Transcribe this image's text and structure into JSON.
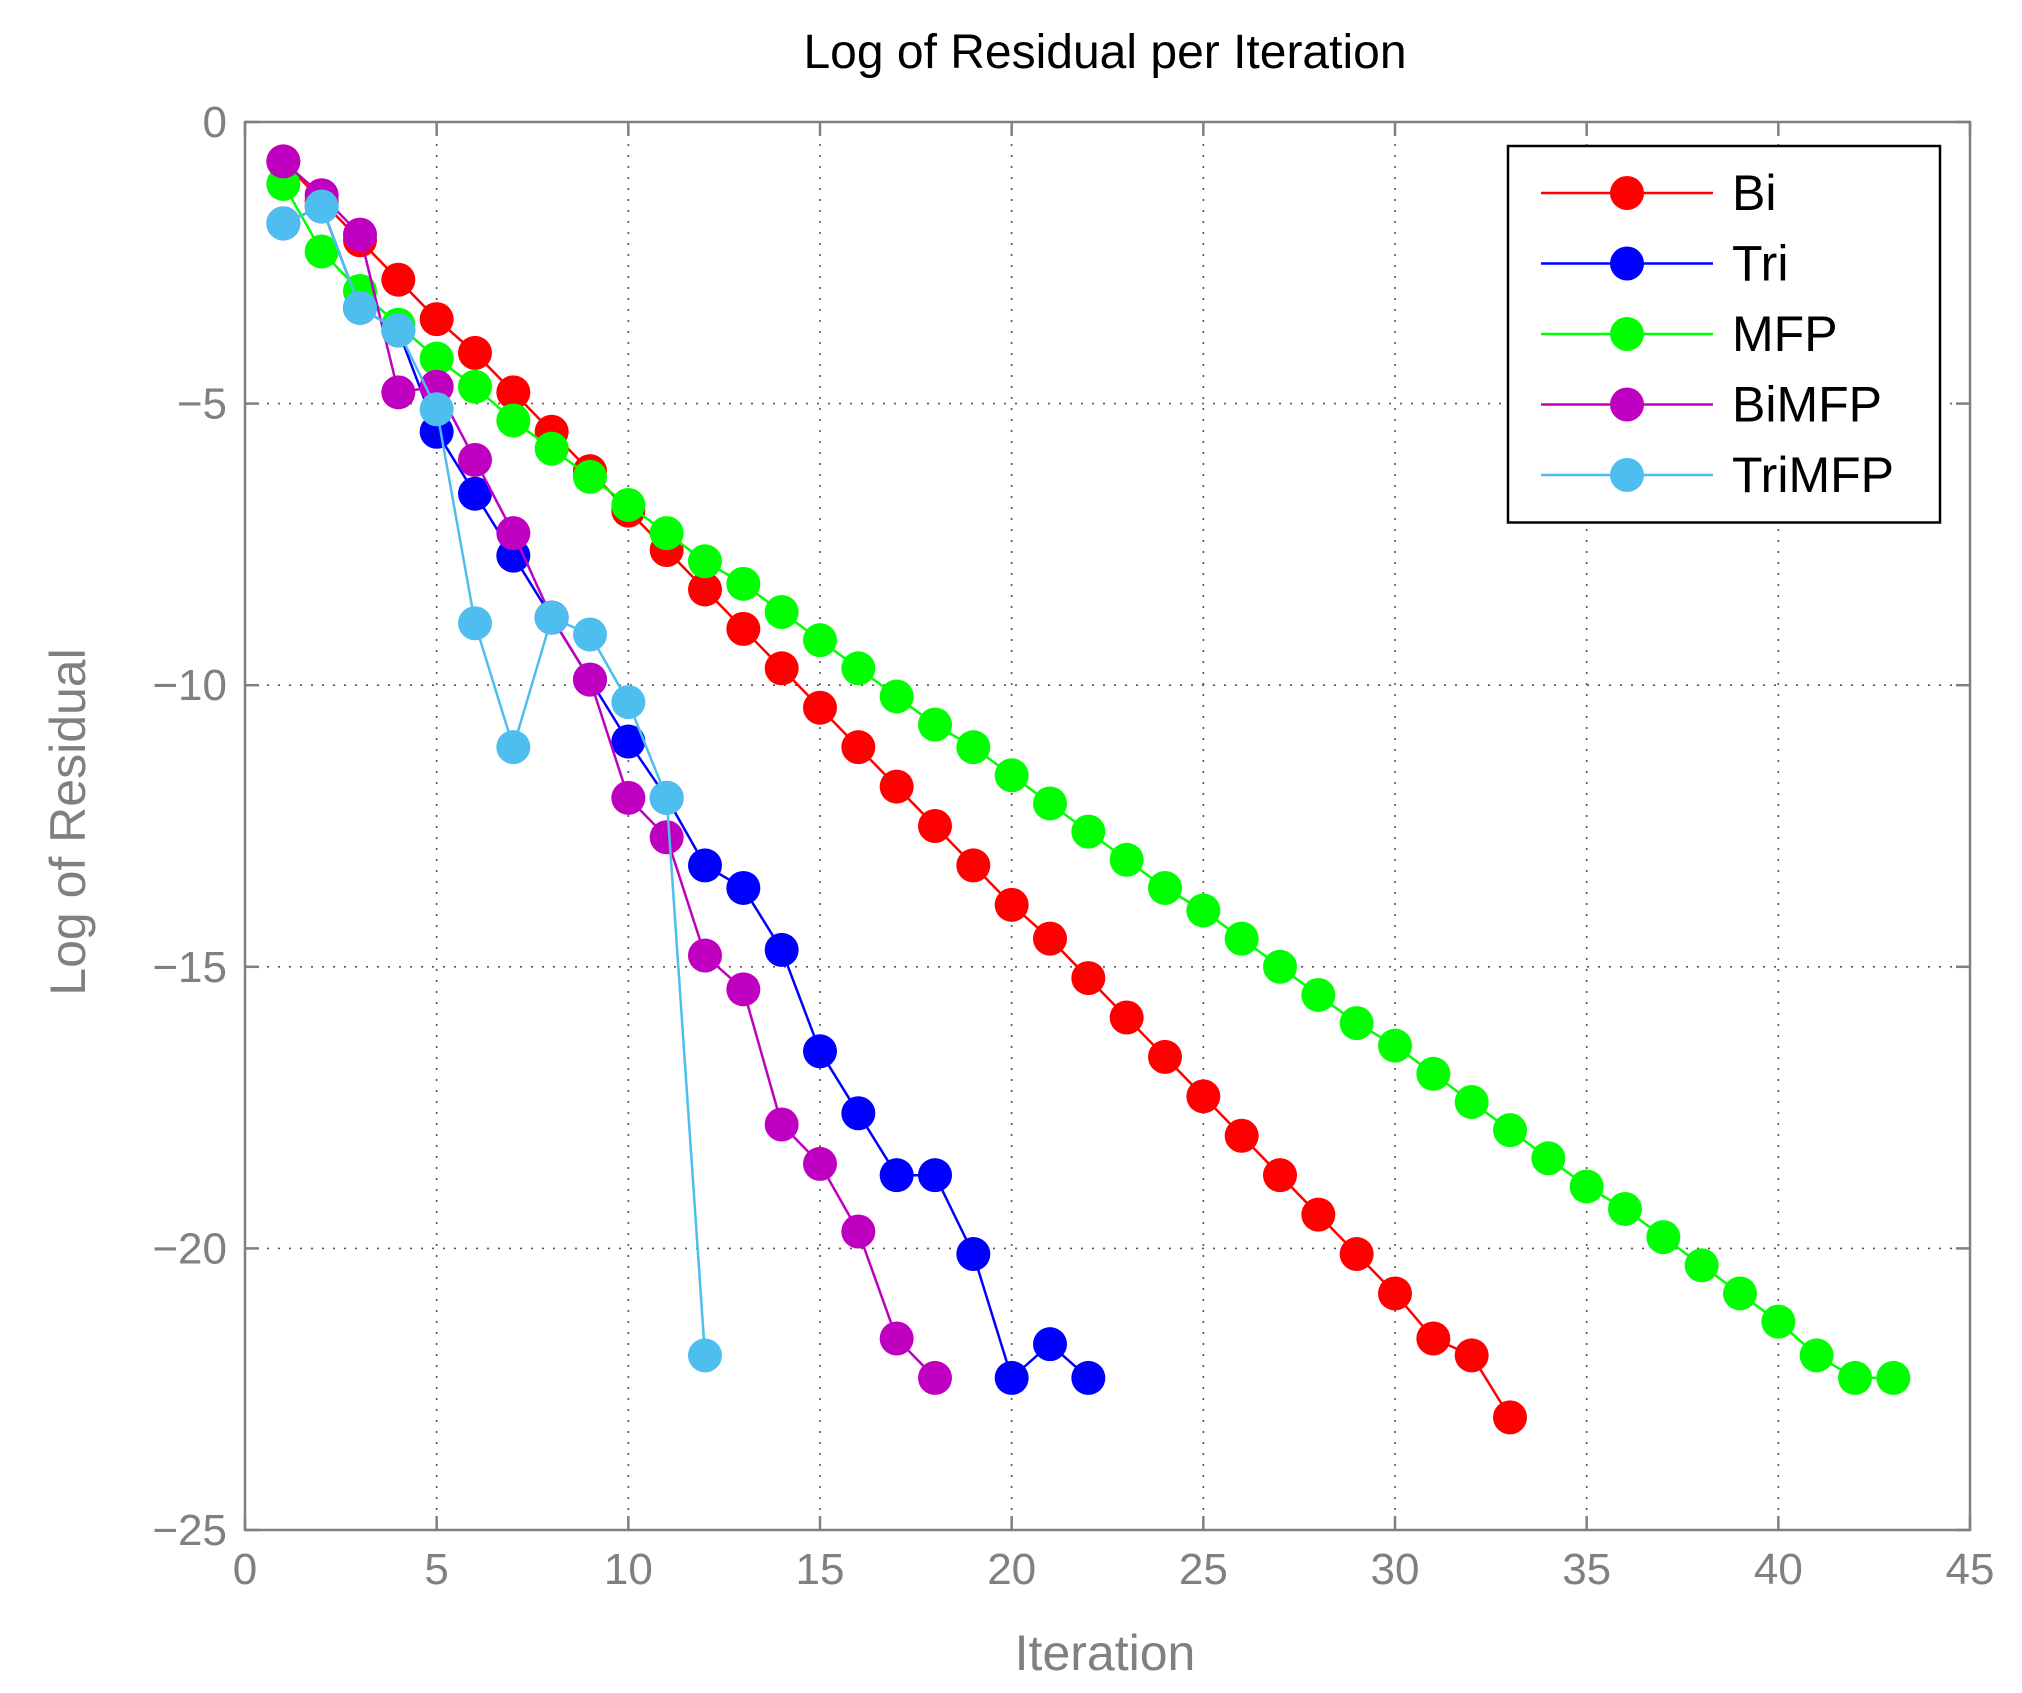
{
  "chart_data": {
    "type": "line",
    "title": "Log of Residual per Iteration",
    "xlabel": "Iteration",
    "ylabel": "Log of Residual",
    "xlim": [
      0,
      45
    ],
    "ylim": [
      -25,
      0
    ],
    "xticks": [
      0,
      5,
      10,
      15,
      20,
      25,
      30,
      35,
      40,
      45
    ],
    "yticks": [
      0,
      -5,
      -10,
      -15,
      -20,
      -25
    ],
    "xtick_labels": [
      "0",
      "5",
      "10",
      "15",
      "20",
      "25",
      "30",
      "35",
      "40",
      "45"
    ],
    "ytick_labels": [
      "0",
      "−5",
      "−10",
      "−15",
      "−20",
      "−25"
    ],
    "grid": true,
    "legend_position": "top-right",
    "series": [
      {
        "name": "Bi",
        "color": "#ff0000",
        "x": [
          1,
          2,
          3,
          4,
          5,
          6,
          7,
          8,
          9,
          10,
          11,
          12,
          13,
          14,
          15,
          16,
          17,
          18,
          19,
          20,
          21,
          22,
          23,
          24,
          25,
          26,
          27,
          28,
          29,
          30,
          31,
          32,
          33
        ],
        "y": [
          -0.7,
          -1.4,
          -2.1,
          -2.8,
          -3.5,
          -4.1,
          -4.8,
          -5.5,
          -6.2,
          -6.9,
          -7.6,
          -8.3,
          -9.0,
          -9.7,
          -10.4,
          -11.1,
          -11.8,
          -12.5,
          -13.2,
          -13.9,
          -14.5,
          -15.2,
          -15.9,
          -16.6,
          -17.3,
          -18.0,
          -18.7,
          -19.4,
          -20.1,
          -20.8,
          -21.6,
          -21.9,
          -23.0
        ]
      },
      {
        "name": "Tri",
        "color": "#0000ff",
        "x": [
          1,
          2,
          3,
          4,
          5,
          6,
          7,
          8,
          9,
          10,
          11,
          12,
          13,
          14,
          15,
          16,
          17,
          18,
          19,
          20,
          21,
          22
        ],
        "y": [
          -1.8,
          -1.5,
          -3.3,
          -3.7,
          -5.5,
          -6.6,
          -7.7,
          -8.8,
          -9.9,
          -11.0,
          -12.0,
          -13.2,
          -13.6,
          -14.7,
          -16.5,
          -17.6,
          -18.7,
          -18.7,
          -20.1,
          -22.3,
          -21.7,
          -22.3
        ]
      },
      {
        "name": "MFP",
        "color": "#00ff00",
        "x": [
          1,
          2,
          3,
          4,
          5,
          6,
          7,
          8,
          9,
          10,
          11,
          12,
          13,
          14,
          15,
          16,
          17,
          18,
          19,
          20,
          21,
          22,
          23,
          24,
          25,
          26,
          27,
          28,
          29,
          30,
          31,
          32,
          33,
          34,
          35,
          36,
          37,
          38,
          39,
          40,
          41,
          42,
          43
        ],
        "y": [
          -1.1,
          -2.3,
          -3.0,
          -3.6,
          -4.2,
          -4.7,
          -5.3,
          -5.8,
          -6.3,
          -6.8,
          -7.3,
          -7.8,
          -8.2,
          -8.7,
          -9.2,
          -9.7,
          -10.2,
          -10.7,
          -11.1,
          -11.6,
          -12.1,
          -12.6,
          -13.1,
          -13.6,
          -14.0,
          -14.5,
          -15.0,
          -15.5,
          -16.0,
          -16.4,
          -16.9,
          -17.4,
          -17.9,
          -18.4,
          -18.9,
          -19.3,
          -19.8,
          -20.3,
          -20.8,
          -21.3,
          -21.9,
          -22.3,
          -22.3
        ]
      },
      {
        "name": "BiMFP",
        "color": "#c000c0",
        "x": [
          1,
          2,
          3,
          4,
          5,
          6,
          7,
          8,
          9,
          10,
          11,
          12,
          13,
          14,
          15,
          16,
          17,
          18
        ],
        "y": [
          -0.7,
          -1.3,
          -2.0,
          -4.8,
          -4.7,
          -6.0,
          -7.3,
          -8.8,
          -9.9,
          -12.0,
          -12.7,
          -14.8,
          -15.4,
          -17.8,
          -18.5,
          -19.7,
          -21.6,
          -22.3
        ]
      },
      {
        "name": "TriMFP",
        "color": "#4dbeee",
        "x": [
          1,
          2,
          3,
          4,
          5,
          6,
          7,
          8,
          9,
          10,
          11,
          12
        ],
        "y": [
          -1.8,
          -1.5,
          -3.3,
          -3.7,
          -5.1,
          -8.9,
          -11.1,
          -8.8,
          -9.1,
          -10.3,
          -12.0,
          -21.9
        ]
      }
    ]
  }
}
